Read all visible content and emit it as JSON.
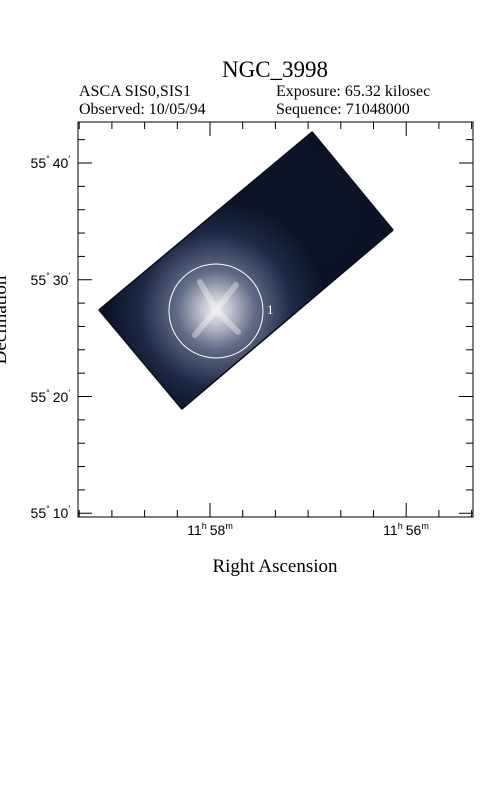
{
  "title": "NGC_3998",
  "header": {
    "instrument": "ASCA SIS0,SIS1",
    "exposure": "Exposure: 65.32 kilosec",
    "observed": "Observed: 10/05/94",
    "sequence": "Sequence: 71048000"
  },
  "x_axis": {
    "label": "Right Ascension",
    "ticks": [
      {
        "hours": "11",
        "h": "h",
        "min": "58",
        "m": "m"
      },
      {
        "hours": "11",
        "h": "h",
        "min": "56",
        "m": "m"
      }
    ]
  },
  "y_axis": {
    "label": "Declination",
    "ticks": [
      {
        "deg": "55",
        "deg_sym": "°",
        "min": "40",
        "min_sym": "′"
      },
      {
        "deg": "55",
        "deg_sym": "°",
        "min": "30",
        "min_sym": "′"
      },
      {
        "deg": "55",
        "deg_sym": "°",
        "min": "20",
        "min_sym": "′"
      },
      {
        "deg": "55",
        "deg_sym": "°",
        "min": "10",
        "min_sym": "′"
      }
    ]
  },
  "source_label": "1"
}
